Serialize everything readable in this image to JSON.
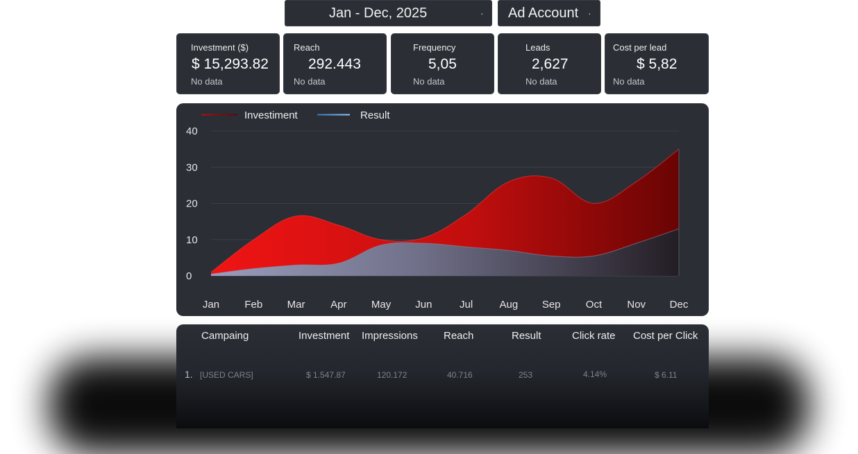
{
  "filters": {
    "date_range": "Jan - Dec, 2025",
    "account": "Ad Account"
  },
  "kpis": [
    {
      "label": "Investment ($)",
      "value": "$ 15,293.82",
      "note": "No data"
    },
    {
      "label": "Reach",
      "value": "292.443",
      "note": "No data"
    },
    {
      "label": "Frequency",
      "value": "5,05",
      "note": "No data"
    },
    {
      "label": "Leads",
      "value": "2,627",
      "note": "No data"
    },
    {
      "label": "Cost per lead",
      "value": "$ 5,82",
      "note": "No data"
    }
  ],
  "colors": {
    "investment": "#e21818",
    "result": "#5aa8e8",
    "card_bg": "#2b2e35"
  },
  "chart_data": {
    "type": "area",
    "legend_position": "top-left",
    "grid": true,
    "ylim": [
      0,
      40
    ],
    "yticks": [
      "0",
      "10",
      "20",
      "30",
      "40"
    ],
    "categories": [
      "Jan",
      "Feb",
      "Mar",
      "Apr",
      "May",
      "Jun",
      "Jul",
      "Aug",
      "Sep",
      "Oct",
      "Nov",
      "Dec"
    ],
    "series": [
      {
        "name": "Investiment",
        "values": [
          1,
          10,
          16.5,
          14,
          10,
          10.5,
          17,
          26,
          27,
          20,
          26,
          35
        ]
      },
      {
        "name": "Result",
        "values": [
          0.5,
          2,
          3,
          3.5,
          8.5,
          9,
          8,
          7,
          5.5,
          5.5,
          9,
          13
        ]
      }
    ]
  },
  "table": {
    "headers": [
      "Campaing",
      "Investment",
      "Impressions",
      "Reach",
      "Result",
      "Click rate",
      "Cost per Click"
    ],
    "rows": [
      {
        "num": "1.",
        "campaign": "[USED CARS]",
        "investment": "$ 1.547.87",
        "impressions": "120.172",
        "reach": "40.716",
        "result": "253",
        "click_rate": "4.14%",
        "cpc": "$ 6.11"
      }
    ]
  }
}
